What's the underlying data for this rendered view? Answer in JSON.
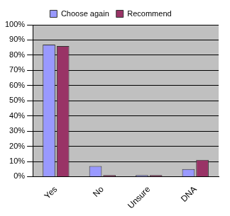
{
  "chart_data": {
    "type": "bar",
    "categories": [
      "Yes",
      "No",
      "Unsure",
      "DNA"
    ],
    "series": [
      {
        "name": "Choose again",
        "color": "#9999ff",
        "values": [
          87,
          7,
          1,
          5
        ]
      },
      {
        "name": "Recommend",
        "color": "#993366",
        "values": [
          86,
          1,
          1,
          11
        ]
      }
    ],
    "ylim": [
      0,
      100
    ],
    "yticks": [
      {
        "value": 0,
        "label": "0%"
      },
      {
        "value": 10,
        "label": "10%"
      },
      {
        "value": 20,
        "label": "20%"
      },
      {
        "value": 30,
        "label": "30%"
      },
      {
        "value": 40,
        "label": "40%"
      },
      {
        "value": 50,
        "label": "50%"
      },
      {
        "value": 60,
        "label": "60%"
      },
      {
        "value": 70,
        "label": "70%"
      },
      {
        "value": 80,
        "label": "80%"
      },
      {
        "value": 90,
        "label": "90%"
      },
      {
        "value": 100,
        "label": "100%"
      }
    ],
    "grid": true,
    "legend": "top"
  }
}
